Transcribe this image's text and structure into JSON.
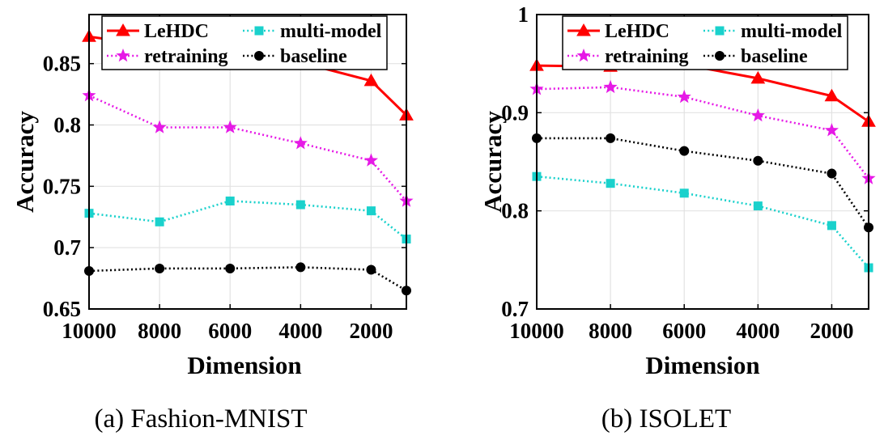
{
  "figure": {
    "series_styles": [
      {
        "name": "LeHDC",
        "color": "#ff0000",
        "marker": "triangle",
        "dash": "solid"
      },
      {
        "name": "multi-model",
        "color": "#1ad1cc",
        "marker": "square",
        "dash": "dotted"
      },
      {
        "name": "retraining",
        "color": "#e619e6",
        "marker": "star",
        "dash": "dotted"
      },
      {
        "name": "baseline",
        "color": "#000000",
        "marker": "circle",
        "dash": "dotted"
      }
    ]
  },
  "chart_data": [
    {
      "type": "line",
      "caption": "(a)  Fashion-MNIST",
      "xlabel": "Dimension",
      "ylabel": "Accuracy",
      "x": [
        10000,
        8000,
        6000,
        4000,
        2000,
        1000
      ],
      "x_reversed": true,
      "xlim": [
        10000,
        1000
      ],
      "ylim": [
        0.65,
        0.89
      ],
      "xticks": [
        10000,
        8000,
        6000,
        4000,
        2000
      ],
      "xtick_labels": [
        "10000",
        "8000",
        "6000",
        "4000",
        "2000"
      ],
      "yticks": [
        0.65,
        0.7,
        0.75,
        0.8,
        0.85
      ],
      "ytick_labels": [
        "0.65",
        "0.7",
        "0.75",
        "0.8",
        "0.85"
      ],
      "grid": true,
      "legend_position": "top",
      "series": [
        {
          "name": "LeHDC",
          "values": [
            0.872,
            0.864,
            0.86,
            0.851,
            0.836,
            0.808
          ]
        },
        {
          "name": "multi-model",
          "values": [
            0.728,
            0.721,
            0.738,
            0.735,
            0.73,
            0.707
          ]
        },
        {
          "name": "retraining",
          "values": [
            0.824,
            0.798,
            0.798,
            0.785,
            0.771,
            0.738
          ]
        },
        {
          "name": "baseline",
          "values": [
            0.681,
            0.683,
            0.683,
            0.684,
            0.682,
            0.665
          ]
        }
      ]
    },
    {
      "type": "line",
      "caption": "(b)  ISOLET",
      "xlabel": "Dimension",
      "ylabel": "Accuracy",
      "x": [
        10000,
        8000,
        6000,
        4000,
        2000,
        1000
      ],
      "x_reversed": true,
      "xlim": [
        10000,
        1000
      ],
      "ylim": [
        0.7,
        1.0
      ],
      "xticks": [
        10000,
        8000,
        6000,
        4000,
        2000
      ],
      "xtick_labels": [
        "10000",
        "8000",
        "6000",
        "4000",
        "2000"
      ],
      "yticks": [
        0.7,
        0.8,
        0.9,
        1.0
      ],
      "ytick_labels": [
        "0.7",
        "0.8",
        "0.9",
        "1"
      ],
      "grid": true,
      "legend_position": "top",
      "series": [
        {
          "name": "LeHDC",
          "values": [
            0.948,
            0.947,
            0.949,
            0.935,
            0.917,
            0.891
          ]
        },
        {
          "name": "multi-model",
          "values": [
            0.835,
            0.828,
            0.818,
            0.805,
            0.785,
            0.742
          ]
        },
        {
          "name": "retraining",
          "values": [
            0.924,
            0.926,
            0.916,
            0.897,
            0.882,
            0.833
          ]
        },
        {
          "name": "baseline",
          "values": [
            0.874,
            0.874,
            0.861,
            0.851,
            0.838,
            0.783
          ]
        }
      ]
    }
  ]
}
